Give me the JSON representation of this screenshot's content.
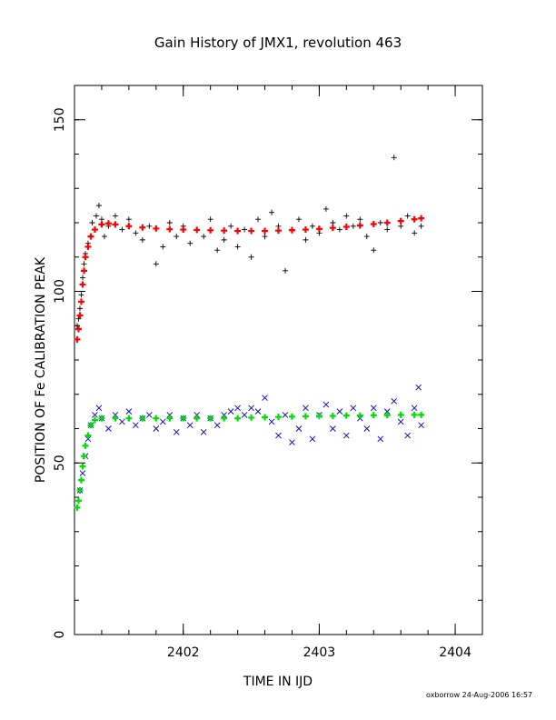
{
  "chart_data": {
    "type": "scatter",
    "title": "Gain History of JMX1, revolution 463",
    "xlabel": "TIME IN IJD",
    "ylabel": "POSITION OF Fe CALIBRATION PEAK",
    "xlim": [
      2401.2,
      2404.2
    ],
    "ylim": [
      0,
      160
    ],
    "xticks": [
      2402,
      2403,
      2404
    ],
    "yticks": [
      0,
      50,
      100,
      150
    ],
    "grid": false,
    "footer": "oxborrow 24-Aug-2006 16:57",
    "series": [
      {
        "marker": "plus",
        "color": "#000000",
        "points": [
          [
            2401.22,
            90
          ],
          [
            2401.23,
            92
          ],
          [
            2401.24,
            95
          ],
          [
            2401.25,
            99
          ],
          [
            2401.26,
            104
          ],
          [
            2401.27,
            108
          ],
          [
            2401.28,
            111
          ],
          [
            2401.3,
            114
          ],
          [
            2401.33,
            120
          ],
          [
            2401.36,
            122
          ],
          [
            2401.38,
            125
          ],
          [
            2401.4,
            121
          ],
          [
            2401.42,
            116
          ],
          [
            2401.45,
            119
          ],
          [
            2401.5,
            122
          ],
          [
            2401.55,
            118
          ],
          [
            2401.6,
            121
          ],
          [
            2401.65,
            117
          ],
          [
            2401.7,
            115
          ],
          [
            2401.75,
            119
          ],
          [
            2401.8,
            108
          ],
          [
            2401.85,
            113
          ],
          [
            2401.9,
            120
          ],
          [
            2401.95,
            116
          ],
          [
            2402.0,
            119
          ],
          [
            2402.05,
            114
          ],
          [
            2402.1,
            118
          ],
          [
            2402.15,
            116
          ],
          [
            2402.2,
            121
          ],
          [
            2402.25,
            112
          ],
          [
            2402.3,
            115
          ],
          [
            2402.35,
            119
          ],
          [
            2402.4,
            113
          ],
          [
            2402.45,
            118
          ],
          [
            2402.5,
            110
          ],
          [
            2402.55,
            121
          ],
          [
            2402.6,
            116
          ],
          [
            2402.65,
            123
          ],
          [
            2402.7,
            119
          ],
          [
            2402.75,
            106
          ],
          [
            2402.8,
            118
          ],
          [
            2402.85,
            121
          ],
          [
            2402.9,
            115
          ],
          [
            2402.95,
            119
          ],
          [
            2403.0,
            117
          ],
          [
            2403.05,
            124
          ],
          [
            2403.1,
            120
          ],
          [
            2403.15,
            118
          ],
          [
            2403.2,
            122
          ],
          [
            2403.25,
            119
          ],
          [
            2403.3,
            121
          ],
          [
            2403.35,
            116
          ],
          [
            2403.4,
            112
          ],
          [
            2403.45,
            120
          ],
          [
            2403.5,
            118
          ],
          [
            2403.55,
            139
          ],
          [
            2403.6,
            119
          ],
          [
            2403.65,
            122
          ],
          [
            2403.7,
            117
          ],
          [
            2403.75,
            119
          ]
        ]
      },
      {
        "marker": "plus",
        "color": "#ff0000",
        "points": [
          [
            2401.22,
            86
          ],
          [
            2401.23,
            89
          ],
          [
            2401.24,
            93
          ],
          [
            2401.25,
            97
          ],
          [
            2401.26,
            102
          ],
          [
            2401.27,
            106
          ],
          [
            2401.28,
            110
          ],
          [
            2401.3,
            113
          ],
          [
            2401.32,
            116
          ],
          [
            2401.35,
            118
          ],
          [
            2401.4,
            119.5
          ],
          [
            2401.45,
            119.8
          ],
          [
            2401.5,
            119.5
          ],
          [
            2401.6,
            119
          ],
          [
            2401.7,
            118.6
          ],
          [
            2401.8,
            118.3
          ],
          [
            2401.9,
            118.1
          ],
          [
            2402.0,
            118
          ],
          [
            2402.1,
            117.9
          ],
          [
            2402.2,
            117.8
          ],
          [
            2402.3,
            117.7
          ],
          [
            2402.4,
            117.6
          ],
          [
            2402.5,
            117.6
          ],
          [
            2402.6,
            117.6
          ],
          [
            2402.7,
            117.7
          ],
          [
            2402.8,
            117.8
          ],
          [
            2402.9,
            118
          ],
          [
            2403.0,
            118.2
          ],
          [
            2403.1,
            118.5
          ],
          [
            2403.2,
            118.8
          ],
          [
            2403.3,
            119.2
          ],
          [
            2403.4,
            119.6
          ],
          [
            2403.5,
            120
          ],
          [
            2403.6,
            120.5
          ],
          [
            2403.7,
            121
          ],
          [
            2403.75,
            121.3
          ]
        ]
      },
      {
        "marker": "cross",
        "color": "#0000cc",
        "points": [
          [
            2401.24,
            42
          ],
          [
            2401.26,
            47
          ],
          [
            2401.28,
            52
          ],
          [
            2401.3,
            57
          ],
          [
            2401.32,
            61
          ],
          [
            2401.35,
            64
          ],
          [
            2401.38,
            66
          ],
          [
            2401.4,
            63
          ],
          [
            2401.45,
            60
          ],
          [
            2401.5,
            64
          ],
          [
            2401.55,
            62
          ],
          [
            2401.6,
            65
          ],
          [
            2401.65,
            61
          ],
          [
            2401.7,
            63
          ],
          [
            2401.75,
            64
          ],
          [
            2401.8,
            60
          ],
          [
            2401.85,
            62
          ],
          [
            2401.9,
            64
          ],
          [
            2401.95,
            59
          ],
          [
            2402.0,
            63
          ],
          [
            2402.05,
            61
          ],
          [
            2402.1,
            64
          ],
          [
            2402.15,
            59
          ],
          [
            2402.2,
            63
          ],
          [
            2402.25,
            61
          ],
          [
            2402.3,
            64
          ],
          [
            2402.35,
            65
          ],
          [
            2402.4,
            66
          ],
          [
            2402.45,
            64
          ],
          [
            2402.5,
            66
          ],
          [
            2402.55,
            65
          ],
          [
            2402.6,
            69
          ],
          [
            2402.65,
            62
          ],
          [
            2402.7,
            58
          ],
          [
            2402.75,
            64
          ],
          [
            2402.8,
            56
          ],
          [
            2402.85,
            60
          ],
          [
            2402.9,
            66
          ],
          [
            2402.95,
            57
          ],
          [
            2403.0,
            64
          ],
          [
            2403.05,
            67
          ],
          [
            2403.1,
            60
          ],
          [
            2403.15,
            65
          ],
          [
            2403.2,
            58
          ],
          [
            2403.25,
            66
          ],
          [
            2403.3,
            63
          ],
          [
            2403.35,
            60
          ],
          [
            2403.4,
            66
          ],
          [
            2403.45,
            57
          ],
          [
            2403.5,
            65
          ],
          [
            2403.55,
            68
          ],
          [
            2403.6,
            62
          ],
          [
            2403.65,
            58
          ],
          [
            2403.7,
            66
          ],
          [
            2403.73,
            72
          ],
          [
            2403.75,
            61
          ]
        ]
      },
      {
        "marker": "plus",
        "color": "#00dd00",
        "points": [
          [
            2401.22,
            37
          ],
          [
            2401.23,
            39
          ],
          [
            2401.24,
            42
          ],
          [
            2401.25,
            45
          ],
          [
            2401.26,
            49
          ],
          [
            2401.27,
            52
          ],
          [
            2401.28,
            55
          ],
          [
            2401.3,
            58
          ],
          [
            2401.32,
            61
          ],
          [
            2401.35,
            62.5
          ],
          [
            2401.4,
            63
          ],
          [
            2401.5,
            63
          ],
          [
            2401.6,
            63
          ],
          [
            2401.7,
            63
          ],
          [
            2401.8,
            63
          ],
          [
            2401.9,
            63
          ],
          [
            2402.0,
            63
          ],
          [
            2402.1,
            63
          ],
          [
            2402.2,
            63
          ],
          [
            2402.3,
            63
          ],
          [
            2402.4,
            63
          ],
          [
            2402.5,
            63.2
          ],
          [
            2402.6,
            63.3
          ],
          [
            2402.7,
            63.4
          ],
          [
            2402.8,
            63.5
          ],
          [
            2402.9,
            63.6
          ],
          [
            2403.0,
            63.7
          ],
          [
            2403.1,
            63.7
          ],
          [
            2403.2,
            63.8
          ],
          [
            2403.3,
            63.8
          ],
          [
            2403.4,
            63.9
          ],
          [
            2403.5,
            63.9
          ],
          [
            2403.6,
            64
          ],
          [
            2403.7,
            64
          ],
          [
            2403.75,
            64
          ]
        ]
      }
    ]
  }
}
